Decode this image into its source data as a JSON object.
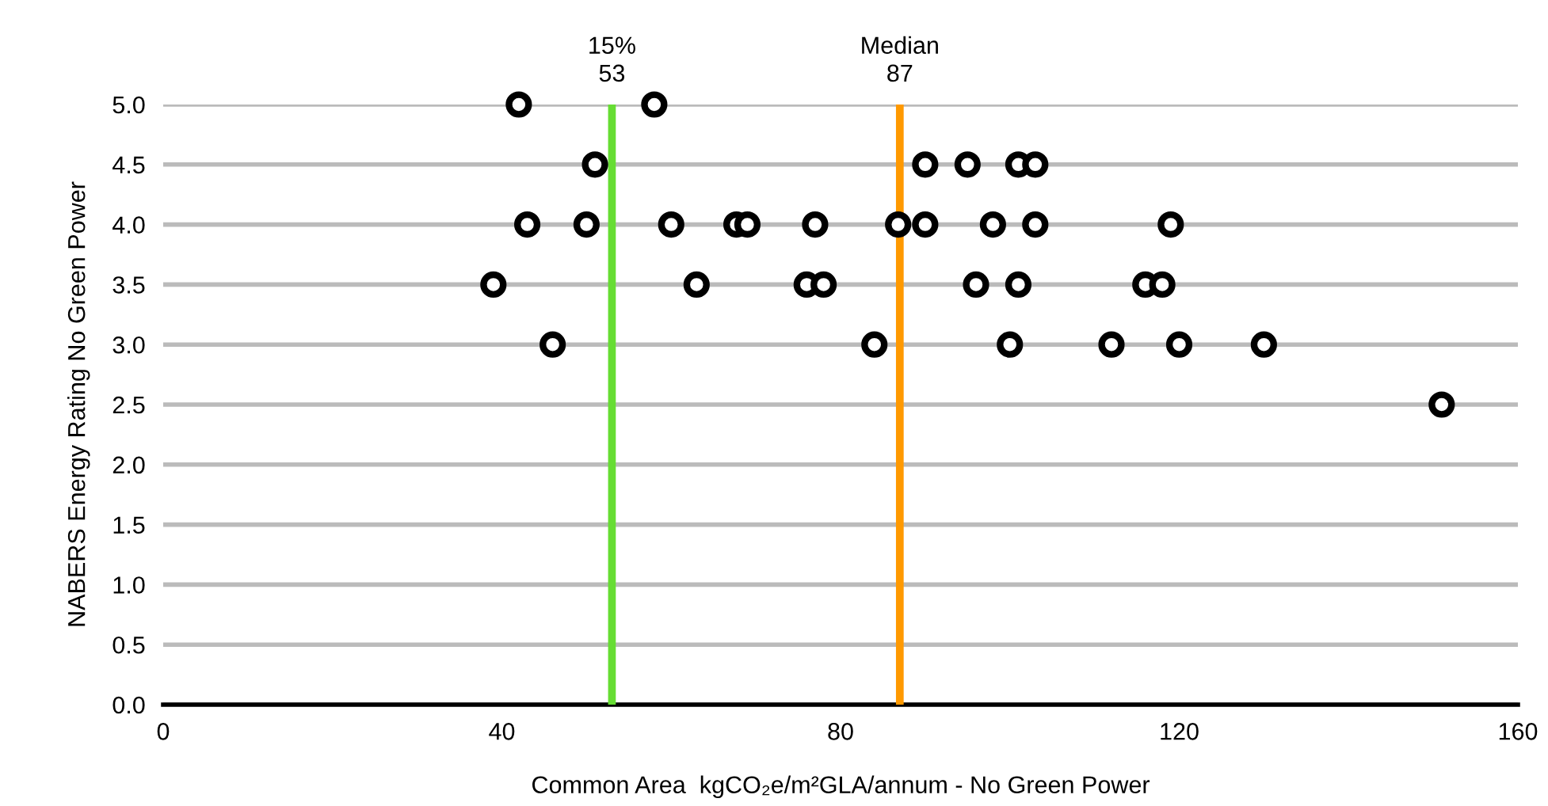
{
  "chart_data": {
    "type": "scatter",
    "xlabel": "Common Area  kgCO₂e/m²GLA/annum - No Green Power",
    "ylabel": "NABERS Energy Rating No Green Power",
    "series": [
      {
        "color": "#000000",
        "x": [
          42,
          58,
          51,
          90,
          95,
          101,
          103,
          43,
          50,
          60,
          67.7,
          69,
          77,
          86.8,
          90,
          98,
          103,
          119,
          39,
          63,
          76,
          78,
          96,
          101,
          116,
          118,
          46,
          84,
          100,
          112,
          120,
          130,
          151
        ],
        "values": [
          5,
          5,
          4.5,
          4.5,
          4.5,
          4.5,
          4.5,
          4,
          4,
          4,
          4,
          4,
          4,
          4,
          4,
          4,
          4,
          4,
          3.5,
          3.5,
          3.5,
          3.5,
          3.5,
          3.5,
          3.5,
          3.5,
          3,
          3,
          3,
          3,
          3,
          3,
          2.5
        ]
      }
    ],
    "marker": "circle",
    "xlim": [
      0,
      160
    ],
    "xticks": [
      0,
      40,
      80,
      120,
      160
    ],
    "ylim": [
      0,
      5
    ],
    "yticks": [
      {
        "value": 0,
        "label": "0.0"
      },
      {
        "value": 0.5,
        "label": "0.5"
      },
      {
        "value": 1,
        "label": "1.0"
      },
      {
        "value": 1.5,
        "label": "1.5"
      },
      {
        "value": 2,
        "label": "2.0"
      },
      {
        "value": 2.5,
        "label": "2.5"
      },
      {
        "value": 3,
        "label": "3.0"
      },
      {
        "value": 3.5,
        "label": "3.5"
      },
      {
        "value": 4,
        "label": "4.0"
      },
      {
        "value": 4.5,
        "label": "4.5"
      },
      {
        "value": 5,
        "label": "5.0"
      }
    ],
    "grid": "y",
    "ref_lines": [
      {
        "axis": "x",
        "value": 53,
        "label": "15%\n53",
        "color": "#66dd33"
      },
      {
        "axis": "x",
        "value": 87,
        "label": "Median\n87",
        "color": "#ff9900"
      }
    ]
  }
}
